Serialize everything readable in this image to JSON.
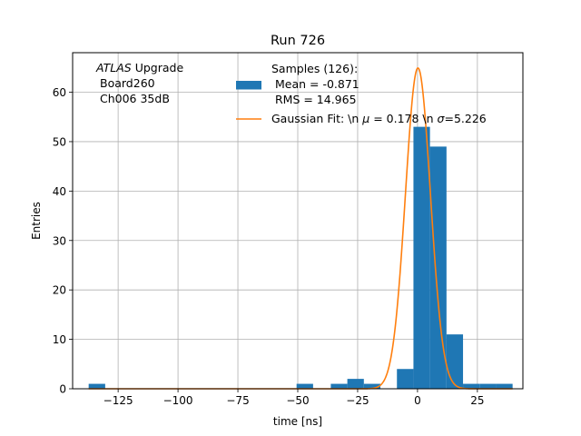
{
  "chart_data": {
    "type": "bar",
    "title": "Run 726",
    "xlabel": "time [ns]",
    "ylabel": "Entries",
    "xlim": [
      -144,
      44
    ],
    "ylim": [
      0,
      68
    ],
    "xticks": [
      -125,
      -100,
      -75,
      -50,
      -25,
      0,
      25
    ],
    "xtick_labels": [
      "−125",
      "−100",
      "−75",
      "−50",
      "−25",
      "0",
      "25"
    ],
    "yticks": [
      0,
      10,
      20,
      30,
      40,
      50,
      60
    ],
    "ytick_labels": [
      "0",
      "10",
      "20",
      "30",
      "40",
      "50",
      "60"
    ],
    "grid": true,
    "annotation": {
      "line1_italic": "ATLAS",
      "line1_rest": " Upgrade",
      "line2": "Board260",
      "line3": "Ch006 35dB"
    },
    "legend": {
      "placement": "top-right",
      "hist_label_lines": [
        "Samples (126):",
        " Mean = -0.871",
        " RMS = 14.965"
      ],
      "fit_label_prefix": "Gaussian Fit: \\n ",
      "fit_mu_symbol": "μ",
      "fit_mu_value": " = 0.178 \\n ",
      "fit_sigma_symbol": "σ",
      "fit_sigma_value": "=5.226"
    },
    "colors": {
      "hist": "#1f77b4",
      "fit": "#ff7f0e",
      "grid": "#b0b0b0"
    },
    "histogram": {
      "name": "Samples (126)",
      "bin_width": 6.9,
      "bins": [
        {
          "left": -137.3,
          "count": 1
        },
        {
          "left": -50.5,
          "count": 1
        },
        {
          "left": -36.2,
          "count": 1
        },
        {
          "left": -29.3,
          "count": 2
        },
        {
          "left": -22.4,
          "count": 1
        },
        {
          "left": -8.6,
          "count": 4
        },
        {
          "left": -1.7,
          "count": 53
        },
        {
          "left": 5.2,
          "count": 49
        },
        {
          "left": 12.1,
          "count": 11
        },
        {
          "left": 19.0,
          "count": 1
        },
        {
          "left": 25.9,
          "count": 1
        },
        {
          "left": 32.8,
          "count": 1
        }
      ]
    },
    "fit": {
      "name": "Gaussian Fit",
      "mu": 0.178,
      "sigma": 5.226,
      "amplitude": 64.9,
      "x_range": [
        -137.3,
        39.7
      ]
    }
  }
}
